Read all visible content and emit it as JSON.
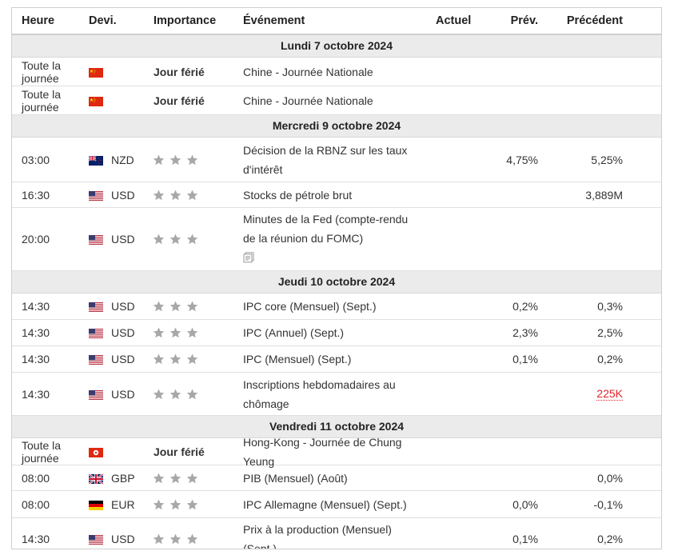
{
  "header": {
    "time": "Heure",
    "currency": "Devi.",
    "importance": "Importance",
    "event": "Événement",
    "actual": "Actuel",
    "forecast": "Prév.",
    "previous": "Précédent"
  },
  "days": [
    {
      "label": "Lundi 7 octobre 2024",
      "rows": [
        {
          "time": "Toute la journée",
          "flag": "cn",
          "currency": "",
          "holiday": "Jour férié",
          "event": "Chine - Journée Nationale",
          "forecast": "",
          "previous": ""
        },
        {
          "time": "Toute la journée",
          "flag": "cn",
          "currency": "",
          "holiday": "Jour férié",
          "event": "Chine - Journée Nationale",
          "forecast": "",
          "previous": ""
        }
      ]
    },
    {
      "label": "Mercredi 9 octobre 2024",
      "rows": [
        {
          "time": "03:00",
          "flag": "nz",
          "currency": "NZD",
          "stars": 3,
          "event": "Décision de la RBNZ sur les taux d'intérêt",
          "forecast": "4,75%",
          "previous": "5,25%"
        },
        {
          "time": "16:30",
          "flag": "us",
          "currency": "USD",
          "stars": 3,
          "event": "Stocks de pétrole brut",
          "forecast": "",
          "previous": "3,889M"
        },
        {
          "time": "20:00",
          "flag": "us",
          "currency": "USD",
          "stars": 3,
          "event": "Minutes de la Fed (compte-rendu de la réunion du FOMC)",
          "doc_icon": "document-icon",
          "forecast": "",
          "previous": ""
        }
      ]
    },
    {
      "label": "Jeudi 10 octobre 2024",
      "rows": [
        {
          "time": "14:30",
          "flag": "us",
          "currency": "USD",
          "stars": 3,
          "event": "IPC core (Mensuel) (Sept.)",
          "forecast": "0,2%",
          "previous": "0,3%"
        },
        {
          "time": "14:30",
          "flag": "us",
          "currency": "USD",
          "stars": 3,
          "event": "IPC (Annuel) (Sept.)",
          "forecast": "2,3%",
          "previous": "2,5%"
        },
        {
          "time": "14:30",
          "flag": "us",
          "currency": "USD",
          "stars": 3,
          "event": "IPC (Mensuel) (Sept.)",
          "forecast": "0,1%",
          "previous": "0,2%"
        },
        {
          "time": "14:30",
          "flag": "us",
          "currency": "USD",
          "stars": 3,
          "event": "Inscriptions hebdomadaires au chômage",
          "forecast": "",
          "previous": "225K",
          "previous_color": "#e0252c"
        }
      ]
    },
    {
      "label": "Vendredi 11 octobre 2024",
      "rows": [
        {
          "time": "Toute la journée",
          "flag": "hk",
          "currency": "",
          "holiday": "Jour férié",
          "event": "Hong-Kong - Journée de Chung Yeung",
          "forecast": "",
          "previous": ""
        },
        {
          "time": "08:00",
          "flag": "gb",
          "currency": "GBP",
          "stars": 3,
          "event": "PIB (Mensuel) (Août)",
          "forecast": "",
          "previous": "0,0%"
        },
        {
          "time": "08:00",
          "flag": "de",
          "currency": "EUR",
          "stars": 3,
          "event": "IPC Allemagne (Mensuel) (Sept.)",
          "forecast": "0,0%",
          "previous": "-0,1%"
        },
        {
          "time": "14:30",
          "flag": "us",
          "currency": "USD",
          "stars": 3,
          "event": "Prix à la production (Mensuel) (Sept.)",
          "forecast": "0,1%",
          "previous": "0,2%"
        }
      ]
    }
  ]
}
